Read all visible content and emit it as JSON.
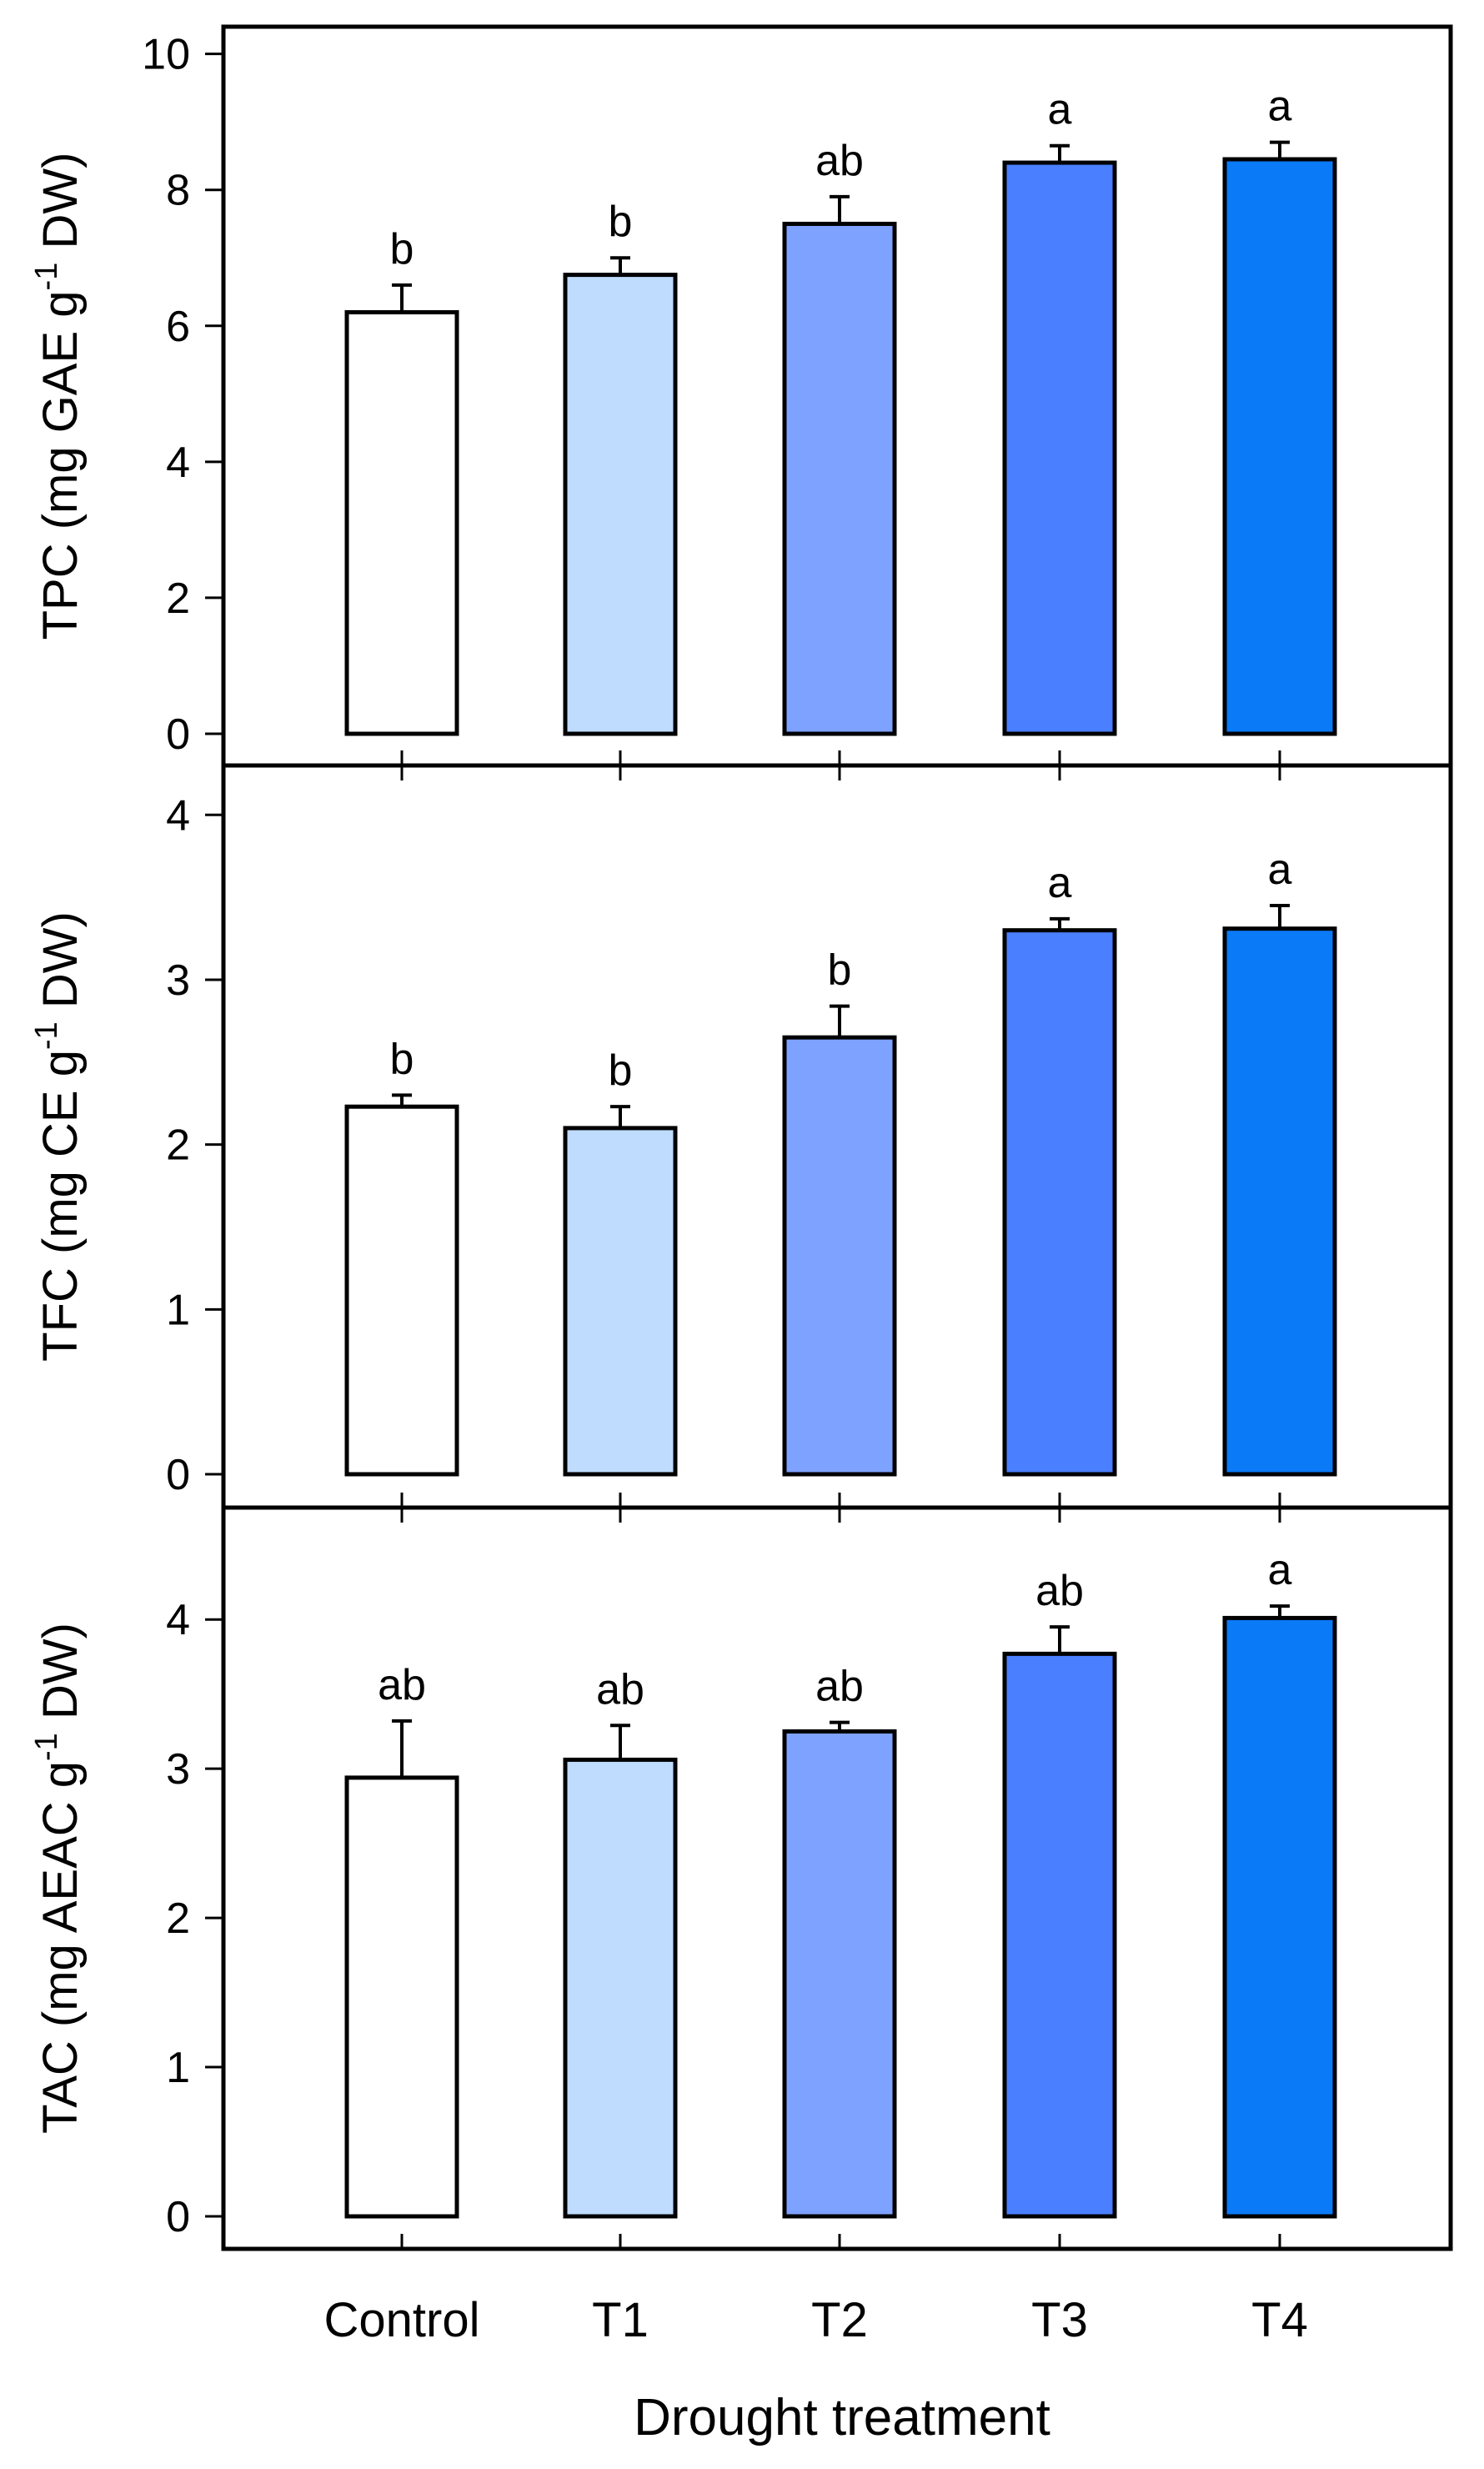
{
  "figure": {
    "xlabel": "Drought treatment",
    "categories": [
      "Control",
      "T1",
      "T2",
      "T3",
      "T4"
    ],
    "bar_colors": [
      "#ffffff",
      "#bfdcff",
      "#7ea2ff",
      "#4a7fff",
      "#0a7af7"
    ]
  },
  "chart_data": [
    {
      "type": "bar",
      "title": "",
      "ylabel": "TPC (mg GAE g",
      "ylabel_sup": "-1",
      "ylabel_tail": " DW)",
      "xlabel": "Drought treatment",
      "categories": [
        "Control",
        "T1",
        "T2",
        "T3",
        "T4"
      ],
      "values": [
        6.2,
        6.75,
        7.5,
        8.4,
        8.45
      ],
      "errors": [
        0.4,
        0.25,
        0.4,
        0.25,
        0.25
      ],
      "letters": [
        "b",
        "b",
        "ab",
        "a",
        "a"
      ],
      "ylim": [
        0,
        10.4
      ],
      "yticks": [
        0,
        2,
        4,
        6,
        8,
        10
      ],
      "grid": false
    },
    {
      "type": "bar",
      "title": "",
      "ylabel": "TFC (mg CE g",
      "ylabel_sup": "-1",
      "ylabel_tail": " DW)",
      "xlabel": "Drought treatment",
      "categories": [
        "Control",
        "T1",
        "T2",
        "T3",
        "T4"
      ],
      "values": [
        2.23,
        2.1,
        2.65,
        3.3,
        3.31
      ],
      "errors": [
        0.07,
        0.13,
        0.19,
        0.07,
        0.14
      ],
      "letters": [
        "b",
        "b",
        "b",
        "a",
        "a"
      ],
      "ylim": [
        0,
        4.3
      ],
      "yticks": [
        0,
        1,
        2,
        3,
        4
      ],
      "grid": false
    },
    {
      "type": "bar",
      "title": "",
      "ylabel": "TAC (mg AEAC g",
      "ylabel_sup": "-1",
      "ylabel_tail": " DW)",
      "xlabel": "Drought treatment",
      "categories": [
        "Control",
        "T1",
        "T2",
        "T3",
        "T4"
      ],
      "values": [
        2.94,
        3.06,
        3.25,
        3.77,
        4.01
      ],
      "errors": [
        0.38,
        0.23,
        0.06,
        0.18,
        0.08
      ],
      "letters": [
        "ab",
        "ab",
        "ab",
        "ab",
        "a"
      ],
      "ylim": [
        0,
        4.75
      ],
      "yticks": [
        0,
        1,
        2,
        3,
        4
      ],
      "grid": false
    }
  ]
}
